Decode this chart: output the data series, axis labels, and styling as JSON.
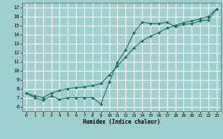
{
  "title": "",
  "xlabel": "Humidex (Indice chaleur)",
  "ylabel": "",
  "background_color": "#9ecfcc",
  "grid_color": "#ffffff",
  "line_color": "#1a6b5a",
  "xlim": [
    -0.5,
    23.5
  ],
  "ylim": [
    5.5,
    17.5
  ],
  "xticks": [
    0,
    1,
    2,
    3,
    4,
    5,
    6,
    7,
    8,
    9,
    10,
    11,
    12,
    13,
    14,
    15,
    16,
    17,
    18,
    19,
    20,
    21,
    22,
    23
  ],
  "yticks": [
    6,
    7,
    8,
    9,
    10,
    11,
    12,
    13,
    14,
    15,
    16,
    17
  ],
  "line1_x": [
    0,
    1,
    2,
    3,
    4,
    5,
    6,
    7,
    8,
    9,
    10,
    11,
    12,
    13,
    14,
    15,
    16,
    17,
    18,
    19,
    20,
    21,
    22,
    23
  ],
  "line1_y": [
    7.5,
    7.0,
    6.7,
    7.2,
    6.8,
    7.0,
    7.0,
    7.0,
    7.0,
    6.3,
    8.7,
    10.9,
    12.3,
    14.2,
    15.35,
    15.2,
    15.2,
    15.35,
    14.85,
    15.1,
    15.2,
    15.5,
    15.6,
    16.8
  ],
  "line2_x": [
    0,
    1,
    2,
    3,
    4,
    5,
    6,
    7,
    8,
    9,
    10,
    11,
    12,
    13,
    14,
    15,
    16,
    17,
    18,
    19,
    20,
    21,
    22,
    23
  ],
  "line2_y": [
    7.5,
    7.2,
    7.0,
    7.5,
    7.8,
    8.0,
    8.1,
    8.2,
    8.35,
    8.55,
    9.5,
    10.5,
    11.5,
    12.5,
    13.3,
    13.8,
    14.2,
    14.7,
    15.0,
    15.3,
    15.5,
    15.7,
    16.0,
    16.8
  ]
}
